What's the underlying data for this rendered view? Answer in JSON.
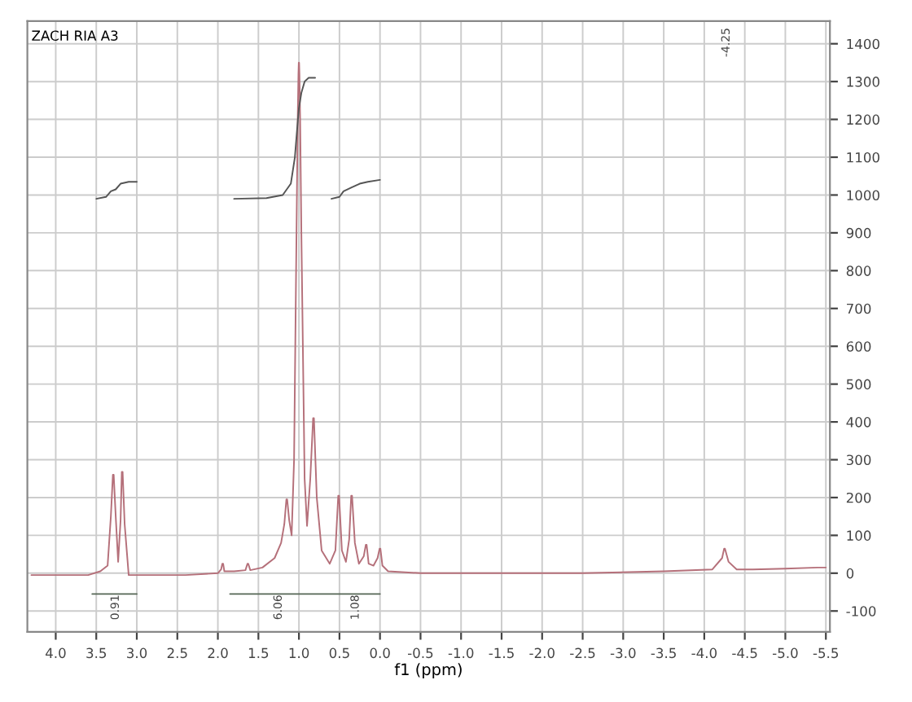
{
  "chart_data": {
    "type": "line",
    "title": "ZACH RIA A3",
    "xlabel": "f1 (ppm)",
    "xlim": [
      4.35,
      -5.55
    ],
    "ylim": [
      -155,
      1460
    ],
    "xticks": [
      {
        "value": 4,
        "label": "4.0"
      },
      3.5,
      {
        "value": 3,
        "label": "3.0"
      },
      2.5,
      {
        "value": 2,
        "label": "2.0"
      },
      1.5,
      {
        "value": 1,
        "label": "1.0"
      },
      0.5,
      {
        "value": 0,
        "label": "0.0"
      },
      -0.5,
      {
        "value": -1,
        "label": "-1.0"
      },
      -1.5,
      {
        "value": -2,
        "label": "-2.0"
      },
      -2.5,
      {
        "value": -3,
        "label": "-3.0"
      },
      -3.5,
      {
        "value": -4,
        "label": "-4.0"
      },
      -4.5,
      {
        "value": -5,
        "label": "-5.0"
      },
      -5.5
    ],
    "yticks": [
      -100,
      0,
      100,
      200,
      300,
      400,
      500,
      600,
      700,
      800,
      900,
      1000,
      1100,
      1200,
      1300,
      1400
    ],
    "grid": true,
    "marker": "none",
    "line_style": "solid",
    "series": [
      {
        "color": "#b5707a",
        "x": [
          4.3,
          4.0,
          3.6,
          3.45,
          3.36,
          3.32,
          3.295,
          3.285,
          3.26,
          3.23,
          3.2,
          3.185,
          3.175,
          3.15,
          3.1,
          2.8,
          2.4,
          2.0,
          1.96,
          1.945,
          1.935,
          1.92,
          1.8,
          1.66,
          1.635,
          1.625,
          1.6,
          1.45,
          1.3,
          1.22,
          1.18,
          1.155,
          1.145,
          1.12,
          1.09,
          1.06,
          1.03,
          1.015,
          1.006,
          1.002,
          0.998,
          0.994,
          0.985,
          0.97,
          0.93,
          0.9,
          0.86,
          0.825,
          0.815,
          0.78,
          0.72,
          0.62,
          0.55,
          0.515,
          0.505,
          0.47,
          0.42,
          0.38,
          0.355,
          0.345,
          0.31,
          0.26,
          0.2,
          0.175,
          0.165,
          0.14,
          0.08,
          0.03,
          0.005,
          -0.005,
          -0.03,
          -0.1,
          -0.5,
          -1.5,
          -2.5,
          -3.5,
          -4.1,
          -4.22,
          -4.245,
          -4.255,
          -4.3,
          -4.4,
          -4.6,
          -5.0,
          -5.4,
          -5.5
        ],
        "values": [
          -5,
          -5,
          -5,
          5,
          20,
          150,
          260,
          260,
          150,
          30,
          140,
          268,
          268,
          130,
          -5,
          -5,
          -5,
          0,
          10,
          25,
          25,
          5,
          5,
          8,
          25,
          25,
          8,
          15,
          40,
          80,
          130,
          195,
          195,
          140,
          100,
          300,
          900,
          1200,
          1320,
          1350,
          1350,
          1320,
          1200,
          900,
          250,
          125,
          250,
          410,
          410,
          200,
          60,
          25,
          60,
          205,
          205,
          60,
          30,
          90,
          205,
          205,
          80,
          25,
          45,
          75,
          75,
          25,
          20,
          40,
          65,
          65,
          20,
          5,
          0,
          0,
          0,
          5,
          10,
          40,
          65,
          65,
          30,
          10,
          10,
          12,
          15,
          15
        ]
      },
      {
        "color": "#555555",
        "x": [
          3.5,
          3.38,
          3.32,
          3.26,
          3.2,
          3.1,
          3.0
        ],
        "values": [
          990,
          995,
          1010,
          1015,
          1030,
          1035,
          1035
        ]
      },
      {
        "color": "#555555",
        "x": [
          1.8,
          1.4,
          1.2,
          1.1,
          1.05,
          1.02,
          1.0,
          0.97,
          0.93,
          0.88,
          0.8
        ],
        "values": [
          990,
          992,
          1000,
          1030,
          1100,
          1180,
          1230,
          1270,
          1300,
          1310,
          1310
        ]
      },
      {
        "color": "#555555",
        "x": [
          0.6,
          0.5,
          0.45,
          0.35,
          0.25,
          0.15,
          0.0
        ],
        "values": [
          990,
          995,
          1010,
          1020,
          1030,
          1035,
          1040
        ]
      },
      {
        "color": "#556655",
        "x": [
          3.55,
          3.0
        ],
        "values": [
          -55,
          -55
        ]
      },
      {
        "color": "#556655",
        "x": [
          1.85,
          0.0
        ],
        "values": [
          -55,
          -55
        ]
      }
    ],
    "annotations": [
      "0.91",
      "6.06",
      "1.08",
      "-4.25"
    ]
  }
}
